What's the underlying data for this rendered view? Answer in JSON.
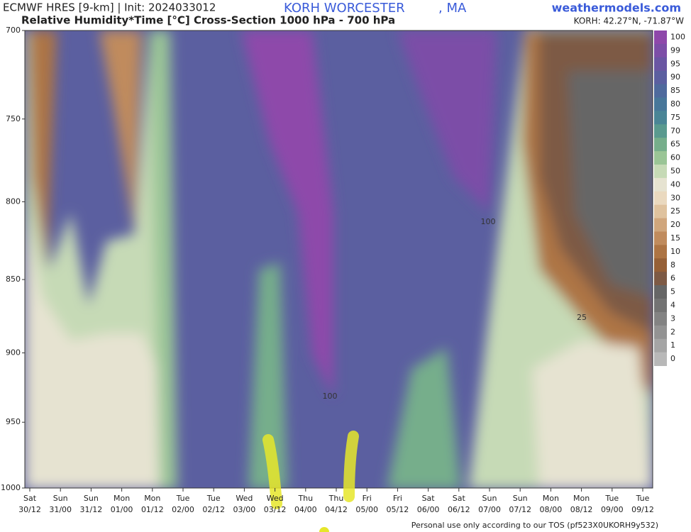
{
  "header": {
    "title": "ECMWF HRES [9-km] | Init: 2024033012",
    "subtitle": "Relative Humidity*Time [°C] Cross-Section 1000 hPa - 700 hPa",
    "station": "KORH WORCESTER",
    "state": ", MA",
    "site": "weathermodels.com",
    "coords": "KORH: 42.27°N, -71.87°W"
  },
  "footer": "Personal use only according to our TOS (pf523X0UKORH9y532)",
  "chart_data": {
    "type": "contour",
    "days": [
      "Sat",
      "Sun",
      "Sun",
      "Mon",
      "Mon",
      "Tue",
      "Tue",
      "Wed",
      "Wed",
      "Thu",
      "Thu",
      "Fri",
      "Fri",
      "Sat",
      "Sat",
      "Sun",
      "Sun",
      "Mon",
      "Mon",
      "Tue",
      "Tue"
    ],
    "categories": [
      "30/12",
      "31/00",
      "31/12",
      "01/00",
      "01/12",
      "02/00",
      "02/12",
      "03/00",
      "03/12",
      "04/00",
      "04/12",
      "05/00",
      "05/12",
      "06/00",
      "06/12",
      "07/00",
      "07/12",
      "08/00",
      "08/12",
      "09/00",
      "09/12"
    ],
    "ylim": [
      700,
      1000
    ],
    "yticks": [
      700,
      750,
      800,
      850,
      900,
      950,
      1000
    ],
    "log_y": true,
    "y_inverted": true,
    "annotations": [
      "25",
      "100",
      "100"
    ],
    "colorbar": [
      {
        "value": 100,
        "color": "#8e48aa"
      },
      {
        "value": 99,
        "color": "#7c4ea7"
      },
      {
        "value": 95,
        "color": "#6a56a3"
      },
      {
        "value": 90,
        "color": "#5b5fa0"
      },
      {
        "value": 85,
        "color": "#4f6a9d"
      },
      {
        "value": 80,
        "color": "#48779a"
      },
      {
        "value": 75,
        "color": "#4a8596"
      },
      {
        "value": 70,
        "color": "#5a9a8f"
      },
      {
        "value": 65,
        "color": "#76ae8b"
      },
      {
        "value": 60,
        "color": "#9ac596"
      },
      {
        "value": 50,
        "color": "#c6dab6"
      },
      {
        "value": 40,
        "color": "#e6e3d1"
      },
      {
        "value": 30,
        "color": "#ead9bf"
      },
      {
        "value": 25,
        "color": "#dfc29e"
      },
      {
        "value": 20,
        "color": "#d0a67c"
      },
      {
        "value": 15,
        "color": "#c08b5d"
      },
      {
        "value": 10,
        "color": "#ad7444"
      },
      {
        "value": 8,
        "color": "#966037"
      },
      {
        "value": 6,
        "color": "#7d5a45"
      },
      {
        "value": 5,
        "color": "#666666"
      },
      {
        "value": 4,
        "color": "#737373"
      },
      {
        "value": 3,
        "color": "#838383"
      },
      {
        "value": 2,
        "color": "#939393"
      },
      {
        "value": 1,
        "color": "#a5a5a5"
      },
      {
        "value": 0,
        "color": "#b8b8b8"
      }
    ]
  }
}
